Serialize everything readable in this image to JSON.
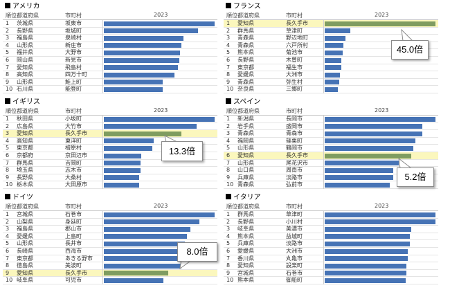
{
  "columns": {
    "rank": "順位",
    "prefecture": "都道府県",
    "city": "市町村",
    "year": "2023"
  },
  "colors": {
    "bar": "#4673b5",
    "highlight_bar": "#7f9c60",
    "highlight_row": "#fbf7bd"
  },
  "panels": [
    {
      "title": "アメリカ",
      "callout": null,
      "rows": [
        {
          "rank": "1",
          "pref": "茨城県",
          "city": "坂東市",
          "value": 100,
          "hl": false
        },
        {
          "rank": "2",
          "pref": "長野県",
          "city": "坂城町",
          "value": 85,
          "hl": false
        },
        {
          "rank": "3",
          "pref": "福島県",
          "city": "泉崎村",
          "value": 72,
          "hl": false
        },
        {
          "rank": "4",
          "pref": "山形県",
          "city": "新庄市",
          "value": 70,
          "hl": false
        },
        {
          "rank": "5",
          "pref": "福井県",
          "city": "大野市",
          "value": 69,
          "hl": false
        },
        {
          "rank": "6",
          "pref": "岡山県",
          "city": "新見市",
          "value": 68,
          "hl": false
        },
        {
          "rank": "7",
          "pref": "愛知県",
          "city": "飛島村",
          "value": 67,
          "hl": false
        },
        {
          "rank": "8",
          "pref": "高知県",
          "city": "四万十町",
          "value": 64,
          "hl": false
        },
        {
          "rank": "9",
          "pref": "山形県",
          "city": "鮭上町",
          "value": 53,
          "hl": false
        },
        {
          "rank": "10",
          "pref": "石川県",
          "city": "能登町",
          "value": 53,
          "hl": false
        }
      ]
    },
    {
      "title": "フランス",
      "callout": "45.0倍",
      "rows": [
        {
          "rank": "1",
          "pref": "愛知県",
          "city": "長久手市",
          "value": 100,
          "hl": true
        },
        {
          "rank": "2",
          "pref": "群馬県",
          "city": "草津町",
          "value": 23,
          "hl": false
        },
        {
          "rank": "3",
          "pref": "青森県",
          "city": "野辺地町",
          "value": 19,
          "hl": false
        },
        {
          "rank": "4",
          "pref": "青森県",
          "city": "六戸所村",
          "value": 17,
          "hl": false
        },
        {
          "rank": "5",
          "pref": "熊本県",
          "city": "菊池市",
          "value": 16,
          "hl": false
        },
        {
          "rank": "6",
          "pref": "長野県",
          "city": "木曽町",
          "value": 15,
          "hl": false
        },
        {
          "rank": "7",
          "pref": "東京都",
          "city": "福生市",
          "value": 15,
          "hl": false
        },
        {
          "rank": "8",
          "pref": "愛媛県",
          "city": "大洲市",
          "value": 14,
          "hl": false
        },
        {
          "rank": "9",
          "pref": "青森県",
          "city": "弥生村",
          "value": 13,
          "hl": false
        },
        {
          "rank": "10",
          "pref": "奈良県",
          "city": "三郷町",
          "value": 12,
          "hl": false
        }
      ]
    },
    {
      "title": "イギリス",
      "callout": "13.3倍",
      "rows": [
        {
          "rank": "1",
          "pref": "秋田県",
          "city": "小坂町",
          "value": 100,
          "hl": false
        },
        {
          "rank": "2",
          "pref": "広島県",
          "city": "大竹市",
          "value": 84,
          "hl": false
        },
        {
          "rank": "3",
          "pref": "愛知県",
          "city": "長久手市",
          "value": 70,
          "hl": true
        },
        {
          "rank": "4",
          "pref": "高知県",
          "city": "東洋町",
          "value": 45,
          "hl": false
        },
        {
          "rank": "5",
          "pref": "東京都",
          "city": "檜原村",
          "value": 44,
          "hl": false
        },
        {
          "rank": "6",
          "pref": "京都府",
          "city": "京田辺市",
          "value": 34,
          "hl": false
        },
        {
          "rank": "7",
          "pref": "群馬県",
          "city": "吉岡町",
          "value": 33,
          "hl": false
        },
        {
          "rank": "8",
          "pref": "埼玉県",
          "city": "志木市",
          "value": 33,
          "hl": false
        },
        {
          "rank": "9",
          "pref": "長野県",
          "city": "大桑村",
          "value": 32,
          "hl": false
        },
        {
          "rank": "10",
          "pref": "栃木県",
          "city": "大田原市",
          "value": 32,
          "hl": false
        }
      ]
    },
    {
      "title": "スペイン",
      "callout": "5.2倍",
      "rows": [
        {
          "rank": "1",
          "pref": "新潟県",
          "city": "長岡市",
          "value": 100,
          "hl": false
        },
        {
          "rank": "2",
          "pref": "岩手県",
          "city": "盛岡市",
          "value": 88,
          "hl": false
        },
        {
          "rank": "3",
          "pref": "青森県",
          "city": "青森市",
          "value": 88,
          "hl": false
        },
        {
          "rank": "4",
          "pref": "福岡県",
          "city": "篠栗町",
          "value": 82,
          "hl": false
        },
        {
          "rank": "5",
          "pref": "山形県",
          "city": "鶴岡市",
          "value": 80,
          "hl": false
        },
        {
          "rank": "6",
          "pref": "愛知県",
          "city": "長久手市",
          "value": 78,
          "hl": true
        },
        {
          "rank": "7",
          "pref": "山形県",
          "city": "尾花沢市",
          "value": 67,
          "hl": false
        },
        {
          "rank": "8",
          "pref": "山口県",
          "city": "周南市",
          "value": 62,
          "hl": false
        },
        {
          "rank": "9",
          "pref": "兵庫県",
          "city": "淡路市",
          "value": 62,
          "hl": false
        },
        {
          "rank": "10",
          "pref": "青森県",
          "city": "弘前市",
          "value": 59,
          "hl": false
        }
      ]
    },
    {
      "title": "ドイツ",
      "callout": "8.0倍",
      "rows": [
        {
          "rank": "1",
          "pref": "宮城県",
          "city": "石巻市",
          "value": 100,
          "hl": false
        },
        {
          "rank": "2",
          "pref": "山梨県",
          "city": "身延町",
          "value": 86,
          "hl": false
        },
        {
          "rank": "3",
          "pref": "福島県",
          "city": "郡山市",
          "value": 78,
          "hl": false
        },
        {
          "rank": "4",
          "pref": "愛媛県",
          "city": "上島町",
          "value": 75,
          "hl": false
        },
        {
          "rank": "5",
          "pref": "山形県",
          "city": "長井市",
          "value": 73,
          "hl": false
        },
        {
          "rank": "6",
          "pref": "長崎県",
          "city": "西海市",
          "value": 72,
          "hl": false
        },
        {
          "rank": "7",
          "pref": "東京都",
          "city": "あきる野市",
          "value": 72,
          "hl": false
        },
        {
          "rank": "8",
          "pref": "徳島県",
          "city": "美波町",
          "value": 70,
          "hl": false
        },
        {
          "rank": "9",
          "pref": "愛知県",
          "city": "長久手市",
          "value": 58,
          "hl": true
        },
        {
          "rank": "10",
          "pref": "岐阜県",
          "city": "可児市",
          "value": 54,
          "hl": false
        }
      ]
    },
    {
      "title": "イタリア",
      "callout": null,
      "rows": [
        {
          "rank": "1",
          "pref": "群馬県",
          "city": "草津町",
          "value": 100,
          "hl": false
        },
        {
          "rank": "2",
          "pref": "長野県",
          "city": "小川村",
          "value": 100,
          "hl": false
        },
        {
          "rank": "3",
          "pref": "岐阜県",
          "city": "美濃市",
          "value": 78,
          "hl": false
        },
        {
          "rank": "4",
          "pref": "熊本県",
          "city": "益城町",
          "value": 77,
          "hl": false
        },
        {
          "rank": "5",
          "pref": "兵庫県",
          "city": "淡路市",
          "value": 77,
          "hl": false
        },
        {
          "rank": "6",
          "pref": "愛媛県",
          "city": "大洲市",
          "value": 75,
          "hl": false
        },
        {
          "rank": "7",
          "pref": "香川県",
          "city": "丸亀市",
          "value": 75,
          "hl": false
        },
        {
          "rank": "8",
          "pref": "愛知県",
          "city": "設楽町",
          "value": 74,
          "hl": false
        },
        {
          "rank": "9",
          "pref": "宮城県",
          "city": "石巻市",
          "value": 74,
          "hl": false
        },
        {
          "rank": "10",
          "pref": "熊本県",
          "city": "御船町",
          "value": 73,
          "hl": false
        }
      ]
    }
  ]
}
